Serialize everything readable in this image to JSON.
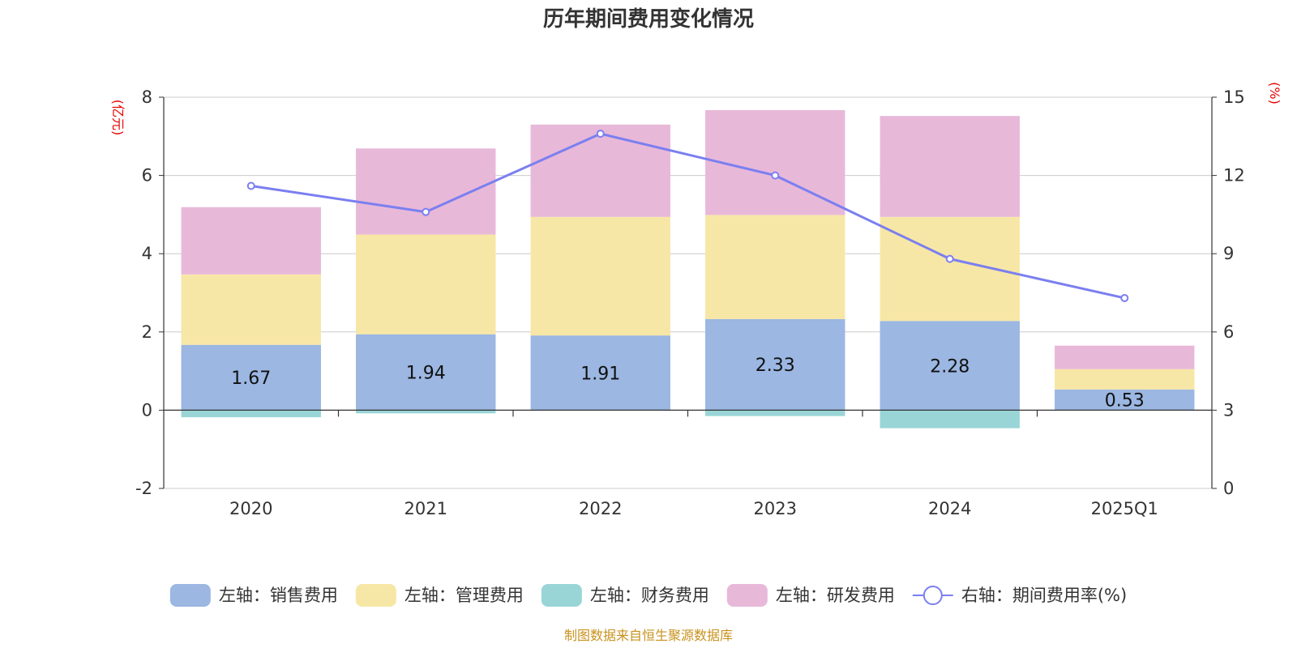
{
  "chart_data": {
    "type": "bar",
    "stacked": true,
    "title": "历年期间费用变化情况",
    "categories": [
      "2020",
      "2021",
      "2022",
      "2023",
      "2024",
      "2025Q1"
    ],
    "y_left": {
      "unit_label": "(亿元)",
      "ylim": [
        -2,
        8
      ],
      "ticks": [
        -2,
        0,
        2,
        4,
        6,
        8
      ]
    },
    "y_right": {
      "unit_label": "(%)",
      "ylim": [
        0,
        15
      ],
      "ticks": [
        0,
        3,
        6,
        9,
        12,
        15
      ]
    },
    "grid": true,
    "legend_position": "bottom",
    "series": [
      {
        "name": "左轴：销售费用",
        "axis": "left",
        "type": "bar",
        "color": "#9bb7e2",
        "values": [
          1.67,
          1.94,
          1.91,
          2.33,
          2.28,
          0.53
        ],
        "show_labels": true
      },
      {
        "name": "左轴：管理费用",
        "axis": "left",
        "type": "bar",
        "color": "#f7e7a6",
        "values": [
          1.8,
          2.55,
          3.03,
          2.66,
          2.66,
          0.52
        ]
      },
      {
        "name": "左轴：财务费用",
        "axis": "left",
        "type": "bar",
        "color": "#99d5d6",
        "values": [
          -0.18,
          -0.08,
          -0.01,
          -0.15,
          -0.46,
          -0.01
        ]
      },
      {
        "name": "左轴：研发费用",
        "axis": "left",
        "type": "bar",
        "color": "#e8b8d9",
        "values": [
          1.72,
          2.2,
          2.36,
          2.68,
          2.58,
          0.6
        ]
      },
      {
        "name": "右轴：期间费用率(%)",
        "axis": "right",
        "type": "line",
        "color": "#7b7ff0",
        "values": [
          11.6,
          10.6,
          13.6,
          12.0,
          8.8,
          7.3
        ]
      }
    ],
    "source": "制图数据来自恒生聚源数据库"
  }
}
